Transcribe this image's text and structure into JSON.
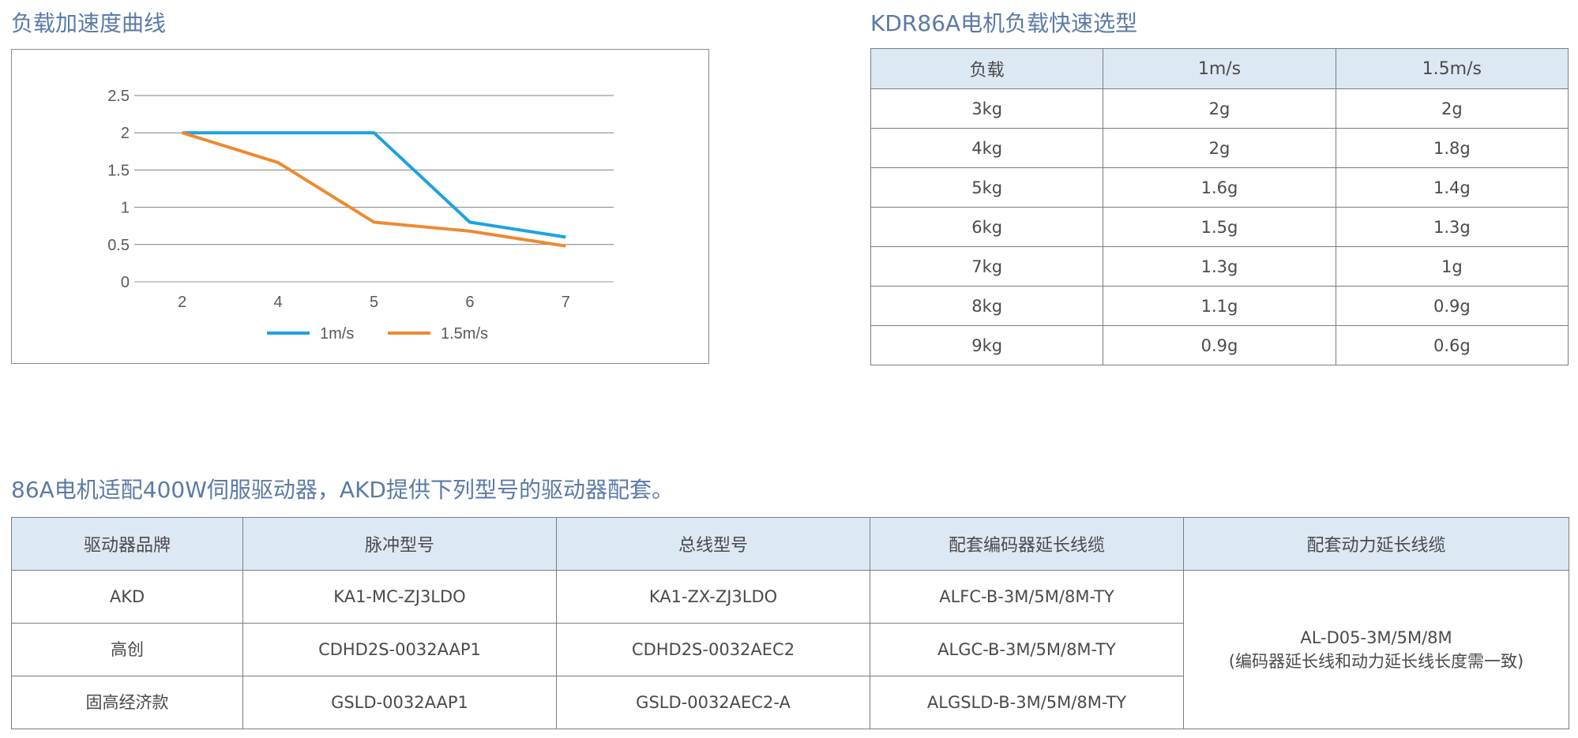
{
  "chart_title": "负载加速度曲线",
  "table_title": "KDR86A电机负载快速选型",
  "drivers_title": "86A电机适配400W伺服驱动器，AKD提供下列型号的驱动器配套。",
  "chart_data": {
    "type": "line",
    "categories": [
      "2",
      "4",
      "5",
      "6",
      "7"
    ],
    "series": [
      {
        "name": "1m/s",
        "values": [
          2,
          2,
          2,
          0.8,
          0.6
        ],
        "color": "#1da3dd"
      },
      {
        "name": "1.5m/s",
        "values": [
          2,
          1.6,
          0.8,
          0.68,
          0.48
        ],
        "color": "#ec8a30"
      }
    ],
    "yticks": [
      "0",
      "0.5",
      "1",
      "1.5",
      "2",
      "2.5"
    ],
    "ylim": [
      0,
      2.5
    ],
    "grid": true,
    "legend_position": "bottom"
  },
  "selection_table": {
    "headers": [
      "负载",
      "1m/s",
      "1.5m/s"
    ],
    "rows": [
      [
        "3kg",
        "2g",
        "2g"
      ],
      [
        "4kg",
        "2g",
        "1.8g"
      ],
      [
        "5kg",
        "1.6g",
        "1.4g"
      ],
      [
        "6kg",
        "1.5g",
        "1.3g"
      ],
      [
        "7kg",
        "1.3g",
        "1g"
      ],
      [
        "8kg",
        "1.1g",
        "0.9g"
      ],
      [
        "9kg",
        "0.9g",
        "0.6g"
      ]
    ]
  },
  "driver_table": {
    "headers": [
      "驱动器品牌",
      "脉冲型号",
      "总线型号",
      "配套编码器延长线缆",
      "配套动力延长线缆"
    ],
    "rows": [
      [
        "AKD",
        "KA1-MC-ZJ3LDO",
        "KA1-ZX-ZJ3LDO",
        "ALFC-B-3M/5M/8M-TY"
      ],
      [
        "高创",
        "CDHD2S-0032AAP1",
        "CDHD2S-0032AEC2",
        "ALGC-B-3M/5M/8M-TY"
      ],
      [
        "固高经济款",
        "GSLD-0032AAP1",
        "GSLD-0032AEC2-A",
        "ALGSLD-B-3M/5M/8M-TY"
      ]
    ],
    "power_cable": {
      "line1": "AL-D05-3M/5M/8M",
      "line2": "(编码器延长线和动力延长线长度需一致)"
    }
  }
}
